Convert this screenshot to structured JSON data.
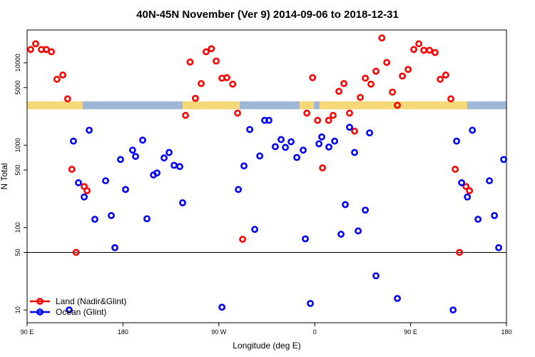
{
  "chart_data": {
    "type": "scatter",
    "title": "40N-45N November (Ver 9)   2014-09-06 to 2018-12-31",
    "xlabel": "Longitude (deg E)",
    "ylabel": "N Total",
    "xlim": [
      90,
      540
    ],
    "ylim": [
      7,
      25000
    ],
    "ylog": true,
    "grid": false,
    "hline": 50,
    "legend": "bottom-left",
    "xticks": [
      {
        "value": 90,
        "label": "90 E"
      },
      180,
      {
        "value": 270,
        "label": "90 W"
      },
      {
        "value": 360,
        "label": "0"
      },
      {
        "value": 450,
        "label": "90 E"
      },
      {
        "value": 540,
        "label": "180"
      }
    ],
    "yticks": [
      10,
      50,
      100,
      500,
      1000,
      5000,
      10000
    ],
    "series": [
      {
        "name": "Land (Nadir&Glint)",
        "color": "#ff0000",
        "x": [
          93.3,
          98,
          103.4,
          108,
          112.8,
          118,
          123.5,
          128,
          132,
          136,
          143.6,
          146.3,
          238.7,
          243,
          248,
          253.4,
          258,
          263,
          267.5,
          272.9,
          277.5,
          283,
          287.6,
          292.3,
          352.6,
          358,
          362.7,
          367.3,
          373,
          377.3,
          382.7,
          387.4,
          392.7,
          397.4,
          402.8,
          407.5,
          412.8,
          417.5,
          423,
          427.6,
          432.9,
          437.6,
          442.3,
          447.7,
          453,
          457.7,
          462.4,
          467.8,
          473,
          477.8,
          483,
          487.8,
          491.9,
          495.9,
          502,
          505.3
        ],
        "values": [
          14500,
          17000,
          14500,
          14500,
          13600,
          6300,
          7100,
          3650,
          510,
          50,
          315,
          280,
          2300,
          10200,
          3700,
          5600,
          13600,
          14800,
          10500,
          6500,
          6600,
          5500,
          2450,
          72,
          2450,
          6600,
          2000,
          530,
          2000,
          2300,
          4500,
          5600,
          2450,
          1480,
          3800,
          6500,
          5500,
          7900,
          20000,
          10100,
          4400,
          3050,
          6900,
          8300,
          14500,
          17000,
          14200,
          14200,
          13300,
          6300,
          7100,
          3650,
          510,
          50,
          315,
          280
        ]
      },
      {
        "name": "Ocean (Glint)",
        "color": "#0000ff",
        "x": [
          129.5,
          133.5,
          138.2,
          143.6,
          148.3,
          153.6,
          163.7,
          169,
          172.4,
          177.7,
          182.4,
          189,
          191.8,
          198.5,
          202.5,
          208.6,
          211.9,
          218.6,
          223.3,
          228,
          233.3,
          236,
          272.9,
          288.3,
          293.6,
          299,
          303.7,
          308.4,
          313,
          317,
          323,
          328.4,
          332.5,
          337.8,
          343.2,
          349.2,
          351.2,
          355.9,
          364,
          366.6,
          373.3,
          378.7,
          384.7,
          388.7,
          392.7,
          397.4,
          400.8,
          407.5,
          411.5,
          417.5,
          437.6,
          489.9,
          493.2,
          497.9,
          503.3,
          508,
          513.3,
          524,
          528.7,
          532.7,
          537.4
        ],
        "values": [
          10,
          1120,
          350,
          235,
          1520,
          126,
          370,
          140,
          57,
          670,
          290,
          870,
          730,
          1150,
          128,
          435,
          460,
          700,
          815,
          570,
          550,
          200,
          10.8,
          290,
          560,
          1550,
          95,
          740,
          2000,
          2000,
          960,
          1170,
          940,
          1100,
          710,
          870,
          73,
          12,
          1040,
          1260,
          950,
          1120,
          83,
          190,
          1650,
          815,
          91,
          163,
          1410,
          26,
          13.8,
          10,
          1120,
          350,
          235,
          1520,
          126,
          370,
          140,
          57,
          670
        ]
      }
    ]
  }
}
